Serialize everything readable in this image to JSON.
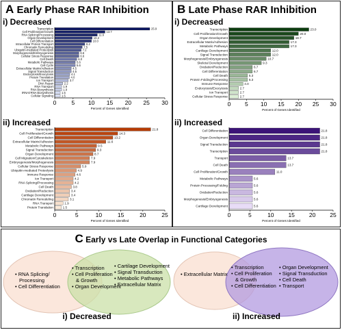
{
  "panel_a": {
    "letter": "A",
    "title": "Early Phase RAR Inhibition",
    "decreased_label": "i) Decreased",
    "increased_label": "ii) Increased"
  },
  "panel_b": {
    "letter": "B",
    "title": "Late Phase RAR Inhibition",
    "decreased_label": "i) Decreased",
    "increased_label": "ii) Increased"
  },
  "panel_c": {
    "letter": "C",
    "title": "Early vs Late Overlap in Functional Categories",
    "decreased": {
      "label": "i) Decreased",
      "left_items": [
        "RNA Splicing/",
        "Processing",
        "Cell Differentiation"
      ],
      "center_items": [
        "Transcription",
        "Cell Proliferation",
        "& Growth",
        "Organ Development"
      ],
      "right_items": [
        "Cartilage Development",
        "Signal Transduction",
        "Metabolic Pathways",
        "Extracellular Matrix"
      ]
    },
    "increased": {
      "label": "ii) Increased",
      "left_items": [
        "Extracellular Matrix"
      ],
      "center_items": [
        "Transcription",
        "Cell Proliferation",
        "& Growth",
        "Cell Differentiation"
      ],
      "right_items": [
        "Organ Development",
        "Signal Transduction",
        "Cell Death",
        "Transport"
      ]
    }
  },
  "colors": {
    "a_dec_dark": "#0a1560",
    "a_dec_light": "#dfe6fb",
    "a_inc_dark": "#b53c05",
    "a_inc_light": "#fbe9d8",
    "b_dec_dark": "#0d3d10",
    "b_dec_light": "#dcefd6",
    "b_inc_dark": "#3c1478",
    "b_inc_light": "#e8dcf7",
    "venn_pink": "#fbe7dc",
    "venn_green": "#cbe0a8",
    "venn_purple": "#b39be0"
  },
  "chart_data": [
    {
      "id": "a_dec",
      "type": "bar",
      "orientation": "horizontal",
      "xlabel": "Percent of Genes Identified",
      "xlim": [
        0,
        30
      ],
      "xticks": [
        0,
        5,
        10,
        15,
        20,
        25,
        30
      ],
      "categories": [
        "Transcription",
        "Cell Proliferation/Growth",
        "RNA Splicing/Processing",
        "Organ Development",
        "Cell Differentiation",
        "Intracellular Protein Transport",
        "Chromatin Remodeling",
        "Ubiquitin-mediated Proteolysis",
        "Morphogenesis/Embryogenesis",
        "Cellular Stress Response",
        "Cell Death",
        "Metabolic Pathways",
        "Cell Cycle",
        "Extracellular Matrix/Adhesion",
        "Signal Transduction",
        "Endocytosis/Exocytosis",
        "Protein Translation",
        "Ion Transport",
        "DNA Repair",
        "RNA Transport",
        "RNA Biosynthesis",
        "tRNA/rRNA Biosynthesis",
        "Cellular Signaling"
      ],
      "values": [
        25.9,
        13.7,
        11.6,
        10.2,
        10.0,
        8.2,
        7.5,
        7.2,
        6.6,
        6.6,
        6.0,
        5.6,
        5.6,
        4.5,
        4.5,
        4.1,
        4.0,
        3.7,
        2.2,
        1.9,
        1.9,
        1.5,
        1.5
      ],
      "data_labels": [
        "25.9",
        "13.7",
        "11.6",
        "10.2",
        "10.0",
        "8.2",
        "7.5",
        "7.2",
        "6.6",
        "6.6",
        "6.0",
        "5.6",
        "5.6",
        "4.5",
        "4.5",
        "4.1",
        "4.0",
        "3.7",
        "2.2",
        "1.9",
        "1.9",
        "1.5",
        "1.5"
      ]
    },
    {
      "id": "a_inc",
      "type": "bar",
      "orientation": "horizontal",
      "xlabel": "Percent of Genes Identified",
      "xlim": [
        0,
        25
      ],
      "xticks": [
        0,
        5,
        10,
        15,
        20,
        25
      ],
      "categories": [
        "Transcription",
        "Cell Proliferation/Growth",
        "Cell Differentiation",
        "Extracellular Matrix/Adhesion",
        "Metabolic Pathways",
        "Signal Transduction",
        "Organ Development",
        "Cell Migration/Cytoskeleton",
        "Embryogenesis/Morphogenesis",
        "Cellular Stress Response",
        "Ubiquitin-mediated Proteolysis",
        "Immune Response",
        "Ion Transport",
        "RNA Splicing/Processing",
        "Cell Death",
        "Oxidation/Reduction",
        "Cartilage Development",
        "Chromatin Remodeling",
        "RNA Transport",
        "Protein Translation"
      ],
      "values": [
        21.8,
        14.3,
        13.2,
        11.6,
        9.5,
        9.3,
        8.7,
        7.9,
        7.9,
        5.9,
        4.9,
        4.6,
        4.2,
        4.2,
        3.8,
        3.4,
        3.4,
        3.1,
        1.9,
        1.5
      ],
      "data_labels": [
        "21.8",
        "14.3",
        "13.2",
        "11.6",
        "9.5",
        "9.3",
        "8.7",
        "7.9",
        "7.9",
        "5.9",
        "4.9",
        "4.6",
        "4.2",
        "4.2",
        "3.8",
        "3.4",
        "3.4",
        "3.1",
        "1.9",
        "1.5"
      ]
    },
    {
      "id": "b_dec",
      "type": "bar",
      "orientation": "horizontal",
      "xlabel": "Percent of Genes Identified",
      "xlim": [
        0,
        30
      ],
      "xticks": [
        0,
        5,
        10,
        15,
        20,
        25,
        30
      ],
      "categories": [
        "Transcription",
        "Cell Proliferation/Growth",
        "Organ Development",
        "Extracellular Matrix/Adhesion",
        "Metabolic Pathways",
        "Cartilage Development",
        "Signal Transduction",
        "Morphogenesis/Embryogenesis",
        "Skeletal Development",
        "Oxidation/Reduction",
        "Cell Differentiation",
        "Cell Death",
        "Protein Folding/Processing",
        "Immune Response",
        "Endocytosis/Exocytosis",
        "Ion Transport",
        "Cellular Stress Response"
      ],
      "values": [
        23.0,
        20.0,
        18.7,
        17.3,
        17.3,
        12.0,
        12.0,
        10.7,
        9.3,
        6.7,
        6.7,
        5.3,
        5.3,
        4.0,
        2.7,
        2.7,
        2.7
      ],
      "data_labels": [
        "23.0",
        "20.0",
        "18.7",
        "17.3",
        "17.3",
        "12.0",
        "12.0",
        "10.7",
        "9.3",
        "6.7",
        "6.7",
        "5.3",
        "5.3",
        "4.0",
        "2.7",
        "2.7",
        "2.7"
      ]
    },
    {
      "id": "b_inc",
      "type": "bar",
      "orientation": "horizontal",
      "xlabel": "Percent of Genes Identified",
      "xlim": [
        0,
        25
      ],
      "xticks": [
        0,
        5,
        10,
        15,
        20,
        25
      ],
      "categories": [
        "Cell Differentiation",
        "Organ Development",
        "Signal Transduction",
        "Transcription",
        "Transport",
        "Cell Death",
        "Cell Proliferation/Growth",
        "Metabolic Pathways",
        "Protein Processing/Folding",
        "Oxidation/Reduction",
        "Morphogenesis/Embryogenesis",
        "Cartilage Development"
      ],
      "values": [
        21.8,
        21.8,
        21.8,
        21.8,
        13.7,
        13.7,
        11.0,
        5.6,
        5.6,
        5.6,
        5.6,
        5.6
      ],
      "data_labels": [
        "21.8",
        "21.8",
        "21.8",
        "21.8",
        "13.7",
        "13.7",
        "11.0",
        "5.6",
        "5.6",
        "5.6",
        "5.6",
        "5.6"
      ]
    }
  ]
}
